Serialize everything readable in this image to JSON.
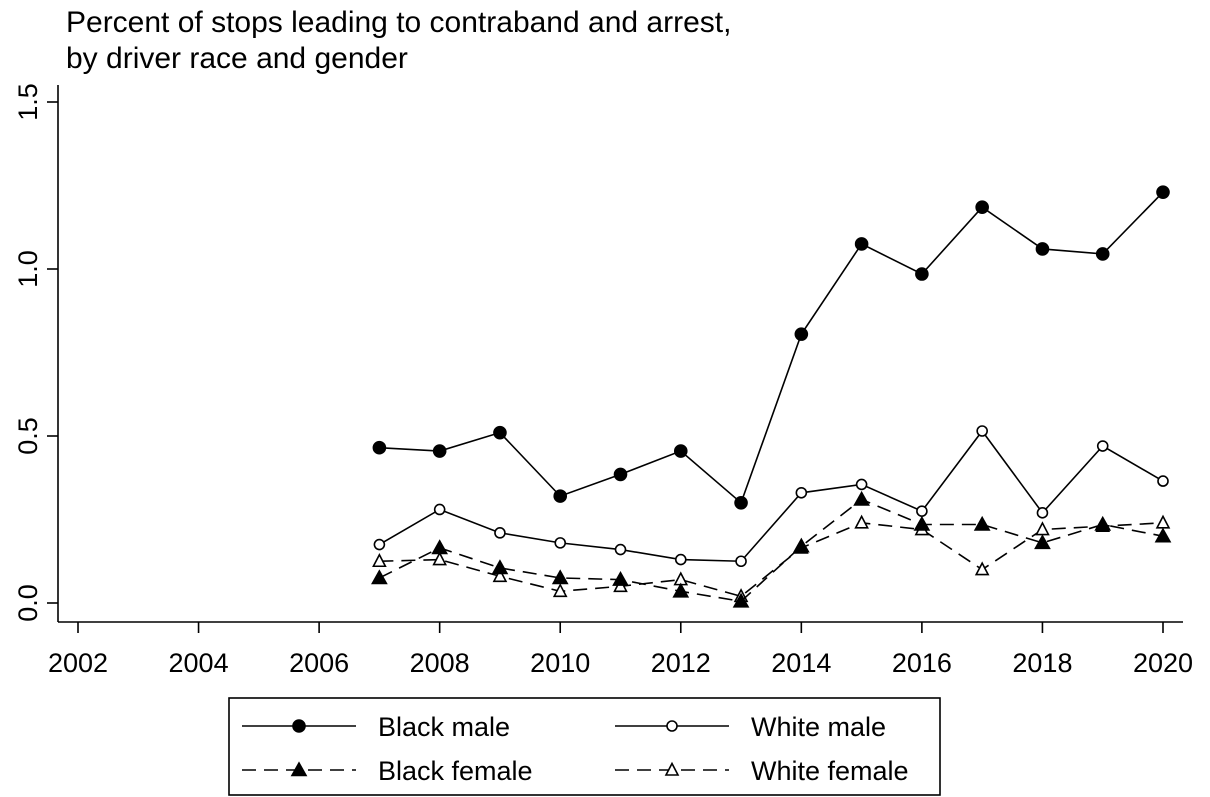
{
  "chart_data": {
    "type": "line",
    "title": [
      "Percent of stops leading to contraband and arrest,",
      "by driver race and gender"
    ],
    "xlabel": "",
    "ylabel": "",
    "xlim": [
      2002,
      2020
    ],
    "ylim": [
      0,
      1.5
    ],
    "x_ticks": [
      "2002",
      "2004",
      "2006",
      "2008",
      "2010",
      "2012",
      "2014",
      "2016",
      "2018",
      "2020"
    ],
    "y_ticks": [
      "0.0",
      "0.5",
      "1.0",
      "1.5"
    ],
    "grid": false,
    "legend_position": "bottom",
    "x": [
      2007,
      2008,
      2009,
      2010,
      2011,
      2012,
      2013,
      2014,
      2015,
      2016,
      2017,
      2018,
      2019,
      2020
    ],
    "series": [
      {
        "name": "Black male",
        "marker": "filled-circle",
        "line": "solid",
        "values": [
          0.465,
          0.455,
          0.51,
          0.32,
          0.385,
          0.455,
          0.3,
          0.805,
          1.075,
          0.985,
          1.185,
          1.06,
          1.045,
          1.23
        ]
      },
      {
        "name": "White male",
        "marker": "hollow-circle",
        "line": "solid",
        "values": [
          0.175,
          0.28,
          0.21,
          0.18,
          0.16,
          0.13,
          0.125,
          0.33,
          0.355,
          0.275,
          0.515,
          0.27,
          0.47,
          0.365
        ]
      },
      {
        "name": "Black female",
        "marker": "filled-triangle",
        "line": "dashed",
        "values": [
          0.075,
          0.165,
          0.105,
          0.075,
          0.07,
          0.035,
          0.005,
          0.17,
          0.31,
          0.235,
          0.235,
          0.18,
          0.235,
          0.2
        ]
      },
      {
        "name": "White female",
        "marker": "hollow-triangle",
        "line": "dashed",
        "values": [
          0.125,
          0.13,
          0.08,
          0.035,
          0.05,
          0.07,
          0.02,
          0.165,
          0.24,
          0.22,
          0.1,
          0.22,
          0.23,
          0.24
        ]
      }
    ]
  }
}
